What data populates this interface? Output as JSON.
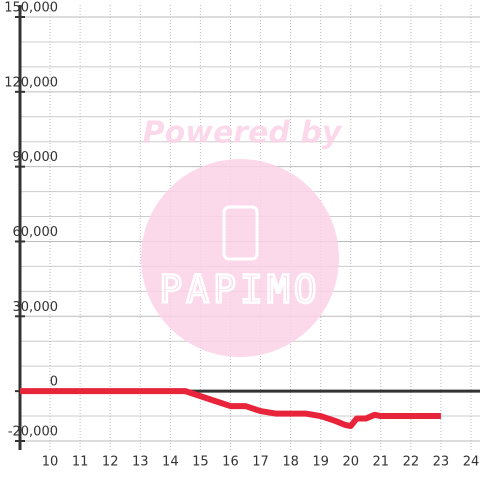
{
  "chart_data": {
    "type": "line",
    "annotations": [
      "Powered by",
      "PAPIMO"
    ],
    "x": [
      9,
      14.5,
      15,
      15.5,
      16,
      16.5,
      17,
      17.5,
      18,
      18.5,
      19,
      19.5,
      19.8,
      20,
      20.2,
      20.5,
      20.8,
      21,
      21.5,
      22,
      23
    ],
    "series": [
      {
        "color": "#e8243a",
        "values": [
          0,
          0,
          -2000,
          -4000,
          -6000,
          -6000,
          -8000,
          -9000,
          -9000,
          -9000,
          -10000,
          -12000,
          -13500,
          -14000,
          -11000,
          -11000,
          -9500,
          -10000,
          -10000,
          -10000,
          -10000
        ]
      }
    ],
    "xlim": [
      9,
      24.3
    ],
    "xticks": [
      10,
      11,
      12,
      13,
      14,
      15,
      16,
      17,
      18,
      19,
      20,
      21,
      22,
      23,
      24
    ],
    "ylim": [
      -20000,
      150000
    ],
    "yticks": [
      {
        "value": -20000,
        "label": "-20,000"
      },
      0,
      {
        "value": 30000,
        "label": "30,000"
      },
      {
        "value": 60000,
        "label": "60,000"
      },
      {
        "value": 90000,
        "label": "90,000"
      },
      {
        "value": 120000,
        "label": "120,000"
      },
      {
        "value": 150000,
        "label": "150,000"
      }
    ],
    "yminorticks": [
      -10000,
      10000,
      20000,
      40000,
      50000,
      70000,
      80000,
      100000,
      110000,
      130000,
      140000
    ],
    "grid": true
  }
}
